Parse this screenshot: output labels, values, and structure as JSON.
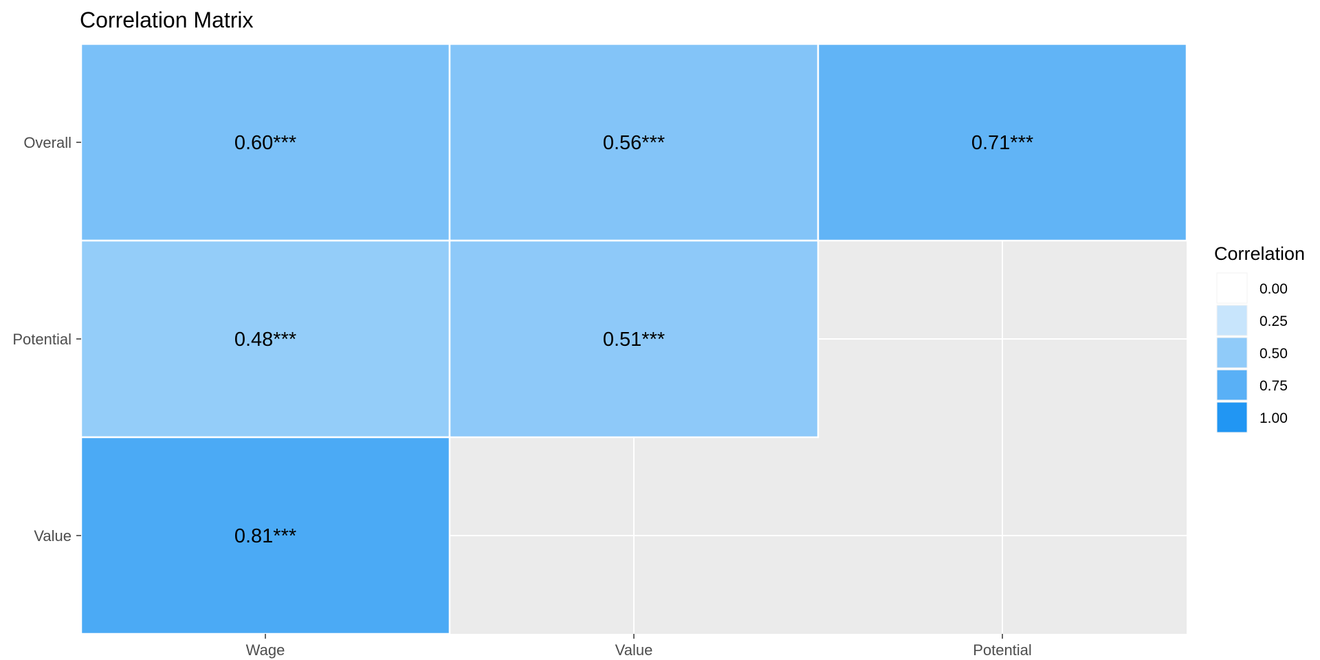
{
  "chart_data": {
    "type": "heatmap",
    "title": "Correlation Matrix",
    "x_categories": [
      "Wage",
      "Value",
      "Potential"
    ],
    "y_categories": [
      "Overall",
      "Potential",
      "Value"
    ],
    "cells": [
      {
        "x": "Wage",
        "y": "Overall",
        "value": 0.6,
        "label": "0.60***"
      },
      {
        "x": "Value",
        "y": "Overall",
        "value": 0.56,
        "label": "0.56***"
      },
      {
        "x": "Potential",
        "y": "Overall",
        "value": 0.71,
        "label": "0.71***"
      },
      {
        "x": "Wage",
        "y": "Potential",
        "value": 0.48,
        "label": "0.48***"
      },
      {
        "x": "Value",
        "y": "Potential",
        "value": 0.51,
        "label": "0.51***"
      },
      {
        "x": "Wage",
        "y": "Value",
        "value": 0.81,
        "label": "0.81***"
      }
    ],
    "color_scale": {
      "low": "#ffffff",
      "high": "#2196f3",
      "min": 0,
      "max": 1
    },
    "legend": {
      "title": "Correlation",
      "position": "right",
      "breaks": [
        0.0,
        0.25,
        0.5,
        0.75,
        1.0
      ],
      "labels": [
        "0.00",
        "0.25",
        "0.50",
        "0.75",
        "1.00"
      ]
    },
    "panel_background": "#ebebeb",
    "grid": true
  }
}
